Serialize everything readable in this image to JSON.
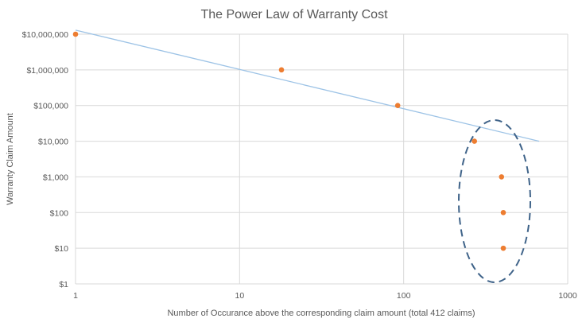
{
  "chart_data": {
    "type": "scatter",
    "title": "The Power Law of Warranty Cost",
    "xlabel": "Number of Occurance above the corresponding claim amount (total 412 claims)",
    "ylabel": "Warranty Claim Amount",
    "x_scale": "log",
    "y_scale": "log",
    "xlim": [
      1,
      1000
    ],
    "ylim": [
      1,
      10000000
    ],
    "x_ticks": [
      1,
      10,
      100,
      1000
    ],
    "x_tick_labels": [
      "1",
      "10",
      "100",
      "1000"
    ],
    "y_ticks": [
      1,
      10,
      100,
      1000,
      10000,
      100000,
      1000000,
      10000000
    ],
    "y_tick_labels": [
      "$1",
      "$10",
      "$100",
      "$1,000",
      "$10,000",
      "$100,000",
      "$1,000,000",
      "$10,000,000"
    ],
    "grid": true,
    "points": [
      {
        "x": 1,
        "y": 10000000
      },
      {
        "x": 18,
        "y": 1000000
      },
      {
        "x": 92,
        "y": 100000
      },
      {
        "x": 270,
        "y": 10000
      },
      {
        "x": 395,
        "y": 1000
      },
      {
        "x": 405,
        "y": 100
      },
      {
        "x": 405,
        "y": 10
      }
    ],
    "trendline": {
      "type": "power",
      "from": {
        "x": 1,
        "y": 13000000
      },
      "to": {
        "x": 670,
        "y": 10000
      }
    },
    "annotation": {
      "type": "dashed-ellipse",
      "encloses": "points with x around 270–405 (y $10–$10,000)"
    },
    "colors": {
      "points": "#ED7D31",
      "trendline": "#9DC3E6",
      "ellipse": "#3F6389",
      "grid": "#D9D9D9",
      "text": "#595959"
    }
  }
}
